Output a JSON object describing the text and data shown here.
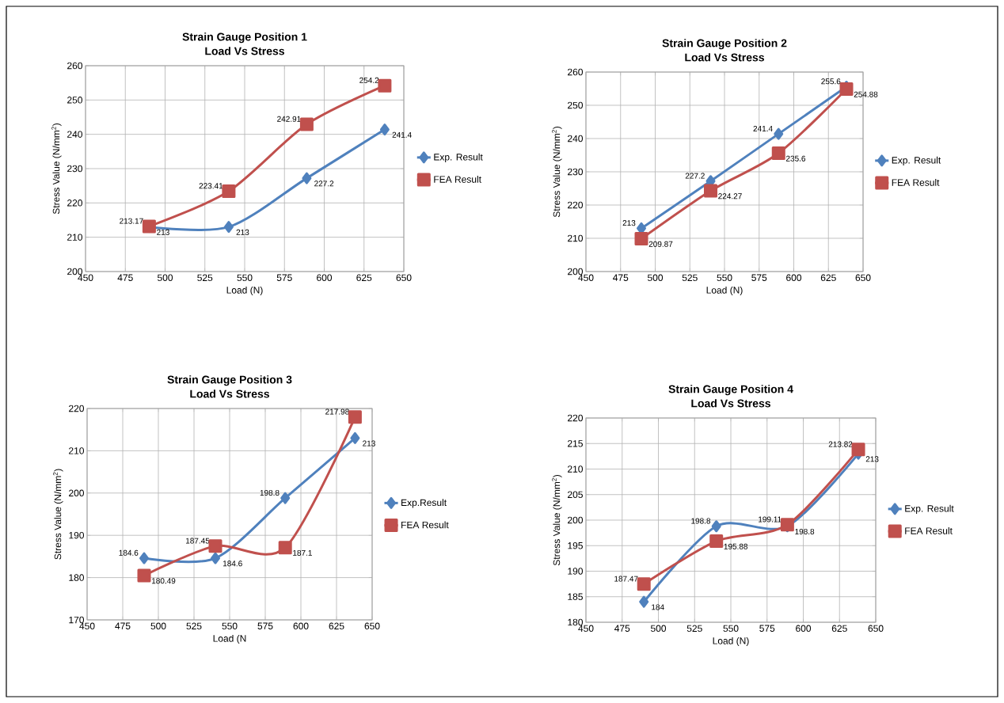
{
  "chart_data": [
    {
      "type": "line",
      "title": "Strain Gauge Position 1",
      "subtitle": "Load Vs Stress",
      "xlabel": "Load (N)",
      "ylabel": "Stress Value (N/mm$^{2}$)",
      "x": [
        490,
        540,
        589,
        638
      ],
      "xlim": [
        450,
        650
      ],
      "xticks": [
        450,
        475,
        500,
        525,
        550,
        575,
        600,
        625,
        650
      ],
      "ylim": [
        200,
        260
      ],
      "yticks": [
        200,
        210,
        220,
        230,
        240,
        250,
        260
      ],
      "grid": true,
      "legend": "right",
      "data_labels": true,
      "series": [
        {
          "name": "Exp. Result",
          "color": "#4f81bd",
          "marker": "diamond",
          "values": [
            213,
            213,
            227.2,
            241.4
          ]
        },
        {
          "name": "FEA Result",
          "color": "#c0504d",
          "marker": "square",
          "values": [
            213.17,
            223.41,
            242.91,
            254.2
          ]
        }
      ]
    },
    {
      "type": "line",
      "title": "Strain Gauge Position 2",
      "subtitle": "Load Vs Stress",
      "xlabel": "Load (N)",
      "ylabel": "Stress Value (N/mm$^{2}$)",
      "x": [
        490,
        540,
        589,
        638
      ],
      "xlim": [
        450,
        650
      ],
      "xticks": [
        450,
        475,
        500,
        525,
        550,
        575,
        600,
        625,
        650
      ],
      "ylim": [
        200,
        260
      ],
      "yticks": [
        200,
        210,
        220,
        230,
        240,
        250,
        260
      ],
      "grid": true,
      "legend": "right",
      "data_labels": true,
      "series": [
        {
          "name": "Exp. Result",
          "color": "#4f81bd",
          "marker": "diamond",
          "values": [
            213,
            227.2,
            241.4,
            255.6
          ]
        },
        {
          "name": "FEA Result",
          "color": "#c0504d",
          "marker": "square",
          "values": [
            209.87,
            224.27,
            235.6,
            254.88
          ]
        }
      ]
    },
    {
      "type": "line",
      "title": "Strain Gauge Position 3",
      "subtitle": "Load Vs Stress",
      "xlabel": "Load (N",
      "ylabel": "Stress Value (N/mm$^{2}$)",
      "x": [
        490,
        540,
        589,
        638
      ],
      "xlim": [
        450,
        650
      ],
      "xticks": [
        450,
        475,
        500,
        525,
        550,
        575,
        600,
        625,
        650
      ],
      "ylim": [
        170,
        220
      ],
      "yticks": [
        170,
        180,
        190,
        200,
        210,
        220
      ],
      "grid": true,
      "legend": "right",
      "data_labels": true,
      "series": [
        {
          "name": "Exp.Result",
          "color": "#4f81bd",
          "marker": "diamond",
          "values": [
            184.6,
            184.6,
            198.8,
            213
          ]
        },
        {
          "name": "FEA Result",
          "color": "#c0504d",
          "marker": "square",
          "values": [
            180.49,
            187.45,
            187.1,
            217.98
          ]
        }
      ]
    },
    {
      "type": "line",
      "title": "Strain Gauge Position 4",
      "subtitle": "Load Vs Stress",
      "xlabel": "Load (N)",
      "ylabel": "Stress Value (N/mm$^{2}$)",
      "x": [
        490,
        540,
        589,
        638
      ],
      "xlim": [
        450,
        650
      ],
      "xticks": [
        450,
        475,
        500,
        525,
        550,
        575,
        600,
        625,
        650
      ],
      "ylim": [
        180,
        220
      ],
      "yticks": [
        180,
        185,
        190,
        195,
        200,
        205,
        210,
        215,
        220
      ],
      "grid": true,
      "legend": "right",
      "data_labels": true,
      "series": [
        {
          "name": "Exp. Result",
          "color": "#4f81bd",
          "marker": "diamond",
          "values": [
            184,
            198.8,
            198.8,
            213
          ]
        },
        {
          "name": "FEA Result",
          "color": "#c0504d",
          "marker": "square",
          "values": [
            187.47,
            195.88,
            199.11,
            213.82
          ]
        }
      ]
    }
  ]
}
